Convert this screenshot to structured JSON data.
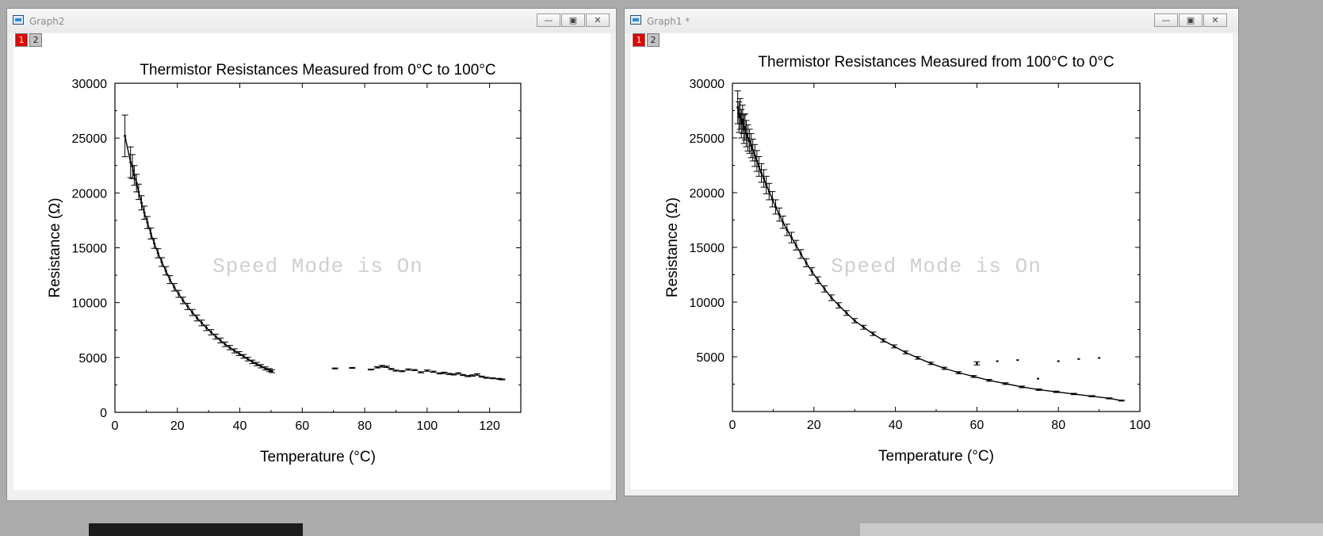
{
  "windows": [
    {
      "title": "Graph2",
      "layer_tabs": [
        "1",
        "2"
      ],
      "controls": [
        "minimize",
        "restore",
        "close"
      ]
    },
    {
      "title": "Graph1 *",
      "layer_tabs": [
        "1",
        "2"
      ],
      "controls": [
        "minimize",
        "restore",
        "close"
      ]
    }
  ],
  "watermark": "Speed Mode is On",
  "chart_data": [
    {
      "type": "scatter",
      "title": "Thermistor Resistances Measured from 0°C to 100°C",
      "xlabel": "Temperature (°C)",
      "ylabel": "Resistance (Ω)",
      "xlim": [
        0,
        130
      ],
      "ylim": [
        0,
        30000
      ],
      "xticks": [
        0,
        20,
        40,
        60,
        80,
        100,
        120
      ],
      "yticks": [
        0,
        5000,
        10000,
        15000,
        20000,
        25000,
        30000
      ],
      "grid": false,
      "legend": "none",
      "series": [
        {
          "x": [
            3.2,
            5.0,
            5.6,
            6.2,
            6.9,
            7.6,
            8.5,
            9.4,
            10.4,
            11.5,
            12.6,
            13.8,
            15.0,
            16.3,
            17.6,
            19.0,
            20.4,
            21.8,
            23.3,
            24.8,
            26.3,
            27.8,
            29.3,
            30.8,
            32.3,
            33.8,
            35.3,
            36.8,
            38.3,
            39.8,
            41.2,
            42.6,
            44.0,
            45.4,
            46.8,
            48.2,
            49.5,
            50.3
          ],
          "y": [
            25200,
            22800,
            22400,
            21600,
            20900,
            20100,
            19100,
            18200,
            17300,
            16300,
            15400,
            14500,
            13700,
            12900,
            12100,
            11400,
            10800,
            10200,
            9650,
            9100,
            8600,
            8150,
            7700,
            7300,
            6900,
            6550,
            6200,
            5900,
            5600,
            5350,
            5100,
            4850,
            4600,
            4400,
            4200,
            4000,
            3850,
            3750
          ],
          "err": [
            1900,
            1400,
            1100,
            900,
            800,
            700,
            650,
            600,
            550,
            500,
            450,
            420,
            400,
            380,
            360,
            340,
            320,
            300,
            290,
            280,
            270,
            260,
            250,
            240,
            230,
            220,
            210,
            200,
            190,
            180,
            170,
            165,
            160,
            155,
            150,
            145,
            140,
            135
          ]
        },
        {
          "x": [
            70.5,
            76,
            82,
            84,
            85.5,
            87,
            88.5,
            90,
            92,
            94,
            96,
            98,
            100,
            102,
            104,
            105.5,
            107,
            108.5,
            110,
            111.5,
            113,
            114.5,
            116,
            117.5,
            119,
            121,
            123,
            124
          ],
          "y": [
            4000,
            4050,
            3900,
            4100,
            4200,
            4150,
            3950,
            3800,
            3750,
            3900,
            3850,
            3650,
            3800,
            3700,
            3550,
            3600,
            3500,
            3450,
            3550,
            3400,
            3300,
            3350,
            3450,
            3250,
            3150,
            3100,
            3050,
            3000
          ],
          "err": [
            40,
            40,
            40,
            60,
            80,
            60,
            50,
            50,
            50,
            60,
            50,
            50,
            60,
            50,
            50,
            60,
            50,
            50,
            60,
            50,
            50,
            60,
            70,
            50,
            50,
            40,
            40,
            40
          ]
        }
      ]
    },
    {
      "type": "scatter",
      "title": "Thermistor Resistances Measured from 100°C to 0°C",
      "xlabel": "Temperature (°C)",
      "ylabel": "Resistance (Ω)",
      "xlim": [
        0,
        100
      ],
      "ylim": [
        0,
        30000
      ],
      "xticks": [
        0,
        20,
        40,
        60,
        80,
        100
      ],
      "yticks": [
        5000,
        10000,
        15000,
        20000,
        25000,
        30000
      ],
      "grid": false,
      "legend": "none",
      "series": [
        {
          "x": [
            1.3,
            1.6,
            1.9,
            2.2,
            2.5,
            2.8,
            3.1,
            3.4,
            3.8,
            4.2,
            4.6,
            5.0,
            5.5,
            6.0,
            6.5,
            7.1,
            7.7,
            8.3,
            9.0,
            9.8,
            10.6,
            11.5,
            12.4,
            13.4,
            14.5,
            15.6,
            16.8,
            18.1,
            19.5,
            21.0,
            22.6,
            24.3,
            26.1,
            28.0,
            30.0,
            32.2,
            34.5,
            37.0,
            39.7,
            42.5,
            45.5,
            48.7,
            52.0,
            55.5,
            59.2,
            63.0,
            67.0,
            71.0,
            75.2,
            79.5,
            83.8,
            88.2,
            92.5,
            95.5
          ],
          "y": [
            27800,
            26900,
            27200,
            26300,
            26700,
            25800,
            26000,
            25400,
            25000,
            24700,
            24300,
            23900,
            23400,
            22900,
            22400,
            21800,
            21300,
            20700,
            20100,
            19400,
            18700,
            18000,
            17300,
            16600,
            15900,
            15200,
            14400,
            13600,
            12800,
            12000,
            11200,
            10400,
            9700,
            9000,
            8300,
            7700,
            7100,
            6500,
            5950,
            5400,
            4900,
            4400,
            3950,
            3550,
            3200,
            2850,
            2550,
            2250,
            2000,
            1800,
            1600,
            1400,
            1200,
            1000
          ],
          "err": [
            1500,
            1400,
            1400,
            1300,
            1300,
            1300,
            1200,
            1200,
            1200,
            1100,
            1100,
            1000,
            1000,
            950,
            900,
            850,
            800,
            800,
            750,
            700,
            650,
            600,
            560,
            520,
            480,
            440,
            400,
            370,
            340,
            310,
            280,
            260,
            240,
            220,
            200,
            180,
            160,
            150,
            140,
            130,
            120,
            110,
            100,
            95,
            90,
            85,
            80,
            75,
            70,
            65,
            60,
            55,
            50,
            45
          ]
        },
        {
          "x": [
            60,
            65,
            70,
            75,
            80,
            85,
            90
          ],
          "y": [
            4400,
            4600,
            4700,
            3000,
            4600,
            4800,
            4900
          ],
          "err": [
            150,
            0,
            0,
            0,
            0,
            0,
            0
          ]
        }
      ]
    }
  ]
}
